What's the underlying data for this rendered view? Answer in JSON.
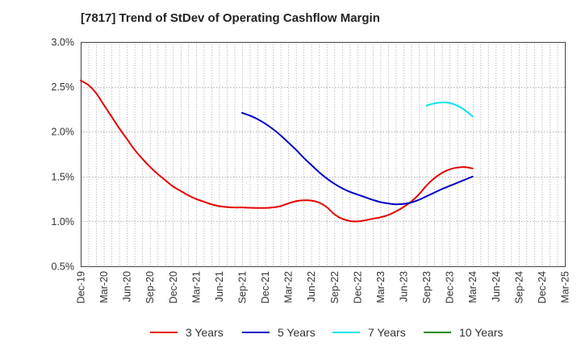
{
  "title": "[7817]  Trend of StDev of Operating Cashflow Margin",
  "chart_data": {
    "type": "line",
    "title": "[7817]  Trend of StDev of Operating Cashflow Margin",
    "xlabel": "",
    "ylabel": "",
    "ylim": [
      0.5,
      3.0
    ],
    "yticks": [
      "0.5%",
      "1.0%",
      "1.5%",
      "2.0%",
      "2.5%",
      "3.0%"
    ],
    "ytick_values": [
      0.5,
      1.0,
      1.5,
      2.0,
      2.5,
      3.0
    ],
    "xticks": [
      "Dec-19",
      "Mar-20",
      "Jun-20",
      "Sep-20",
      "Dec-20",
      "Mar-21",
      "Jun-21",
      "Sep-21",
      "Dec-21",
      "Mar-22",
      "Jun-22",
      "Sep-22",
      "Dec-22",
      "Mar-23",
      "Jun-23",
      "Sep-23",
      "Dec-23",
      "Mar-24",
      "Jun-24",
      "Sep-24",
      "Dec-24",
      "Mar-25"
    ],
    "grid": true,
    "legend_position": "bottom",
    "series": [
      {
        "name": "3 Years",
        "color": "#e60000",
        "points": [
          [
            "Dec-19",
            2.57
          ],
          [
            "Jan-20",
            2.52
          ],
          [
            "Feb-20",
            2.43
          ],
          [
            "Mar-20",
            2.3
          ],
          [
            "Apr-20",
            2.17
          ],
          [
            "May-20",
            2.04
          ],
          [
            "Jun-20",
            1.92
          ],
          [
            "Jul-20",
            1.8
          ],
          [
            "Aug-20",
            1.7
          ],
          [
            "Sep-20",
            1.61
          ],
          [
            "Oct-20",
            1.53
          ],
          [
            "Nov-20",
            1.46
          ],
          [
            "Dec-20",
            1.39
          ],
          [
            "Jan-21",
            1.34
          ],
          [
            "Feb-21",
            1.29
          ],
          [
            "Mar-21",
            1.25
          ],
          [
            "Apr-21",
            1.22
          ],
          [
            "May-21",
            1.19
          ],
          [
            "Jun-21",
            1.17
          ],
          [
            "Jul-21",
            1.16
          ],
          [
            "Aug-21",
            1.155
          ],
          [
            "Sep-21",
            1.155
          ],
          [
            "Oct-21",
            1.152
          ],
          [
            "Nov-21",
            1.15
          ],
          [
            "Dec-21",
            1.15
          ],
          [
            "Jan-22",
            1.155
          ],
          [
            "Feb-22",
            1.17
          ],
          [
            "Mar-22",
            1.2
          ],
          [
            "Apr-22",
            1.225
          ],
          [
            "May-22",
            1.235
          ],
          [
            "Jun-22",
            1.232
          ],
          [
            "Jul-22",
            1.21
          ],
          [
            "Aug-22",
            1.16
          ],
          [
            "Sep-22",
            1.08
          ],
          [
            "Oct-22",
            1.03
          ],
          [
            "Nov-22",
            1.005
          ],
          [
            "Dec-22",
            1.0
          ],
          [
            "Jan-23",
            1.012
          ],
          [
            "Feb-23",
            1.03
          ],
          [
            "Mar-23",
            1.045
          ],
          [
            "Apr-23",
            1.07
          ],
          [
            "May-23",
            1.11
          ],
          [
            "Jun-23",
            1.16
          ],
          [
            "Jul-23",
            1.22
          ],
          [
            "Aug-23",
            1.3
          ],
          [
            "Sep-23",
            1.4
          ],
          [
            "Oct-23",
            1.48
          ],
          [
            "Nov-23",
            1.54
          ],
          [
            "Dec-23",
            1.58
          ],
          [
            "Jan-24",
            1.6
          ],
          [
            "Feb-24",
            1.605
          ],
          [
            "Mar-24",
            1.59
          ]
        ]
      },
      {
        "name": "5 Years",
        "color": "#0000c8",
        "points": [
          [
            "Sep-21",
            2.21
          ],
          [
            "Oct-21",
            2.18
          ],
          [
            "Nov-21",
            2.14
          ],
          [
            "Dec-21",
            2.09
          ],
          [
            "Jan-22",
            2.03
          ],
          [
            "Feb-22",
            1.96
          ],
          [
            "Mar-22",
            1.88
          ],
          [
            "Apr-22",
            1.8
          ],
          [
            "May-22",
            1.71
          ],
          [
            "Jun-22",
            1.63
          ],
          [
            "Jul-22",
            1.55
          ],
          [
            "Aug-22",
            1.48
          ],
          [
            "Sep-22",
            1.42
          ],
          [
            "Oct-22",
            1.37
          ],
          [
            "Nov-22",
            1.33
          ],
          [
            "Dec-22",
            1.3
          ],
          [
            "Jan-23",
            1.27
          ],
          [
            "Feb-23",
            1.24
          ],
          [
            "Mar-23",
            1.215
          ],
          [
            "Apr-23",
            1.2
          ],
          [
            "May-23",
            1.19
          ],
          [
            "Jun-23",
            1.195
          ],
          [
            "Jul-23",
            1.21
          ],
          [
            "Aug-23",
            1.24
          ],
          [
            "Sep-23",
            1.28
          ],
          [
            "Oct-23",
            1.32
          ],
          [
            "Nov-23",
            1.36
          ],
          [
            "Dec-23",
            1.395
          ],
          [
            "Jan-24",
            1.43
          ],
          [
            "Feb-24",
            1.465
          ],
          [
            "Mar-24",
            1.5
          ]
        ]
      },
      {
        "name": "7 Years",
        "color": "#00e5ee",
        "points": [
          [
            "Sep-23",
            2.29
          ],
          [
            "Oct-23",
            2.315
          ],
          [
            "Nov-23",
            2.325
          ],
          [
            "Dec-23",
            2.32
          ],
          [
            "Jan-24",
            2.29
          ],
          [
            "Feb-24",
            2.24
          ],
          [
            "Mar-24",
            2.17
          ]
        ]
      },
      {
        "name": "10 Years",
        "color": "#1a8c1a",
        "points": []
      }
    ]
  }
}
